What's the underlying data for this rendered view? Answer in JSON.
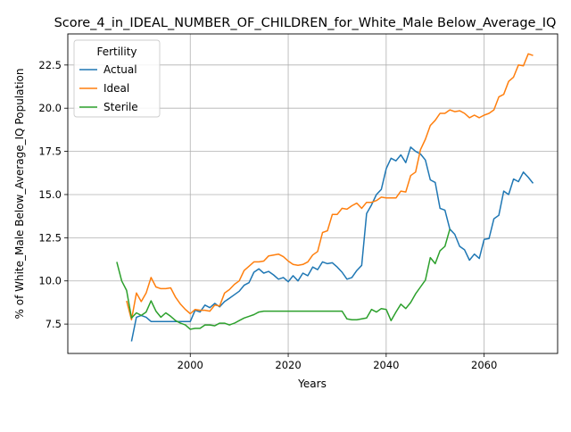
{
  "chart_data": {
    "type": "line",
    "title": "Score_4_in_IDEAL_NUMBER_OF_CHILDREN_for_White_Male Below_Average_IQ",
    "xlabel": "Years",
    "ylabel": "% of White_Male Below_Average_IQ Population",
    "xlim": [
      1975,
      2075
    ],
    "ylim": [
      5.8,
      24.3
    ],
    "xticks": [
      2000,
      2020,
      2040,
      2060
    ],
    "yticks": [
      7.5,
      10.0,
      12.5,
      15.0,
      17.5,
      20.0,
      22.5
    ],
    "ytick_labels": [
      "7.5",
      "10.0",
      "12.5",
      "15.0",
      "17.5",
      "20.0",
      "22.5"
    ],
    "grid": true,
    "legend": {
      "title": "Fertility",
      "placement": "top-left"
    },
    "series": [
      {
        "name": "Actual",
        "color": "#1f77b4",
        "x": [
          1988,
          1989,
          1990,
          1991,
          1992,
          1993,
          1994,
          1995,
          1996,
          1997,
          1998,
          1999,
          2000,
          2001,
          2002,
          2003,
          2004,
          2005,
          2006,
          2007,
          2008,
          2009,
          2010,
          2011,
          2012,
          2013,
          2014,
          2015,
          2016,
          2017,
          2018,
          2019,
          2020,
          2021,
          2022,
          2023,
          2024,
          2025,
          2026,
          2027,
          2028,
          2029,
          2030,
          2031,
          2032,
          2033,
          2034,
          2035,
          2036,
          2037,
          2038,
          2039,
          2040,
          2041,
          2042,
          2043,
          2044,
          2045,
          2046,
          2047,
          2048,
          2049,
          2050,
          2051,
          2052,
          2053,
          2054,
          2055,
          2056,
          2057,
          2058,
          2059,
          2060,
          2061,
          2062,
          2063,
          2064,
          2065,
          2066,
          2067,
          2068,
          2069,
          2070
        ],
        "values": [
          6.5,
          7.9,
          8.0,
          7.9,
          7.65,
          7.65,
          7.65,
          7.65,
          7.65,
          7.65,
          7.65,
          7.65,
          7.65,
          8.3,
          8.2,
          8.6,
          8.45,
          8.7,
          8.5,
          8.8,
          9.0,
          9.2,
          9.4,
          9.75,
          9.9,
          10.5,
          10.7,
          10.45,
          10.55,
          10.35,
          10.1,
          10.2,
          9.95,
          10.3,
          10.0,
          10.45,
          10.3,
          10.8,
          10.65,
          11.1,
          11.0,
          11.05,
          10.8,
          10.5,
          10.1,
          10.2,
          10.6,
          10.9,
          13.9,
          14.4,
          15.0,
          15.3,
          16.5,
          17.1,
          16.95,
          17.3,
          16.85,
          17.75,
          17.5,
          17.35,
          17.0,
          15.85,
          15.7,
          14.2,
          14.1,
          13.0,
          12.7,
          12.0,
          11.8,
          11.2,
          11.55,
          11.3,
          12.4,
          12.45,
          13.6,
          13.8,
          15.2,
          15.0,
          15.9,
          15.75,
          16.3,
          16.0,
          15.65
        ]
      },
      {
        "name": "Ideal",
        "color": "#ff7f0e",
        "x": [
          1987,
          1988,
          1989,
          1990,
          1991,
          1992,
          1993,
          1994,
          1995,
          1996,
          1997,
          1998,
          1999,
          2000,
          2001,
          2002,
          2003,
          2004,
          2005,
          2006,
          2007,
          2008,
          2009,
          2010,
          2011,
          2012,
          2013,
          2014,
          2015,
          2016,
          2017,
          2018,
          2019,
          2020,
          2021,
          2022,
          2023,
          2024,
          2025,
          2026,
          2027,
          2028,
          2029,
          2030,
          2031,
          2032,
          2033,
          2034,
          2035,
          2036,
          2037,
          2038,
          2039,
          2040,
          2041,
          2042,
          2043,
          2044,
          2045,
          2046,
          2047,
          2048,
          2049,
          2050,
          2051,
          2052,
          2053,
          2054,
          2055,
          2056,
          2057,
          2058,
          2059,
          2060,
          2061,
          2062,
          2063,
          2064,
          2065,
          2066,
          2067,
          2068,
          2069,
          2070
        ],
        "values": [
          8.85,
          7.75,
          9.3,
          8.8,
          9.3,
          10.2,
          9.65,
          9.55,
          9.55,
          9.6,
          9.05,
          8.65,
          8.35,
          8.1,
          8.35,
          8.3,
          8.3,
          8.25,
          8.6,
          8.55,
          9.3,
          9.5,
          9.8,
          10.0,
          10.6,
          10.85,
          11.1,
          11.1,
          11.15,
          11.45,
          11.5,
          11.55,
          11.4,
          11.15,
          10.95,
          10.9,
          10.95,
          11.1,
          11.5,
          11.7,
          12.8,
          12.9,
          13.85,
          13.85,
          14.2,
          14.15,
          14.35,
          14.5,
          14.2,
          14.55,
          14.55,
          14.65,
          14.85,
          14.8,
          14.8,
          14.8,
          15.2,
          15.15,
          16.1,
          16.3,
          17.6,
          18.2,
          19.0,
          19.3,
          19.7,
          19.7,
          19.9,
          19.8,
          19.85,
          19.7,
          19.45,
          19.6,
          19.45,
          19.6,
          19.7,
          19.9,
          20.65,
          20.8,
          21.55,
          21.8,
          22.5,
          22.45,
          23.15,
          23.05
        ]
      },
      {
        "name": "Sterile",
        "color": "#2ca02c",
        "x": [
          1985,
          1986,
          1987,
          1988,
          1989,
          1990,
          1991,
          1992,
          1993,
          1994,
          1995,
          1996,
          1997,
          1998,
          1999,
          2000,
          2001,
          2002,
          2003,
          2004,
          2005,
          2006,
          2007,
          2008,
          2009,
          2010,
          2011,
          2012,
          2013,
          2014,
          2015,
          2016,
          2017,
          2018,
          2019,
          2020,
          2021,
          2022,
          2023,
          2024,
          2025,
          2026,
          2027,
          2028,
          2029,
          2030,
          2031,
          2032,
          2033,
          2034,
          2035,
          2036,
          2037,
          2038,
          2039,
          2040,
          2041,
          2042,
          2043,
          2044,
          2045,
          2046,
          2047,
          2048,
          2049,
          2050,
          2051,
          2052,
          2053
        ],
        "values": [
          11.1,
          10.0,
          9.45,
          7.85,
          8.15,
          8.0,
          8.2,
          8.85,
          8.25,
          7.9,
          8.15,
          7.95,
          7.7,
          7.55,
          7.45,
          7.2,
          7.25,
          7.25,
          7.45,
          7.45,
          7.4,
          7.55,
          7.55,
          7.45,
          7.55,
          7.7,
          7.85,
          7.95,
          8.05,
          8.2,
          8.25,
          8.25,
          8.25,
          8.25,
          8.25,
          8.25,
          8.25,
          8.25,
          8.25,
          8.25,
          8.25,
          8.25,
          8.25,
          8.25,
          8.25,
          8.25,
          8.25,
          7.8,
          7.75,
          7.75,
          7.8,
          7.85,
          8.35,
          8.2,
          8.4,
          8.35,
          7.7,
          8.2,
          8.65,
          8.4,
          8.75,
          9.25,
          9.65,
          10.05,
          11.35,
          11.0,
          11.75,
          12.0,
          13.0
        ]
      }
    ]
  }
}
